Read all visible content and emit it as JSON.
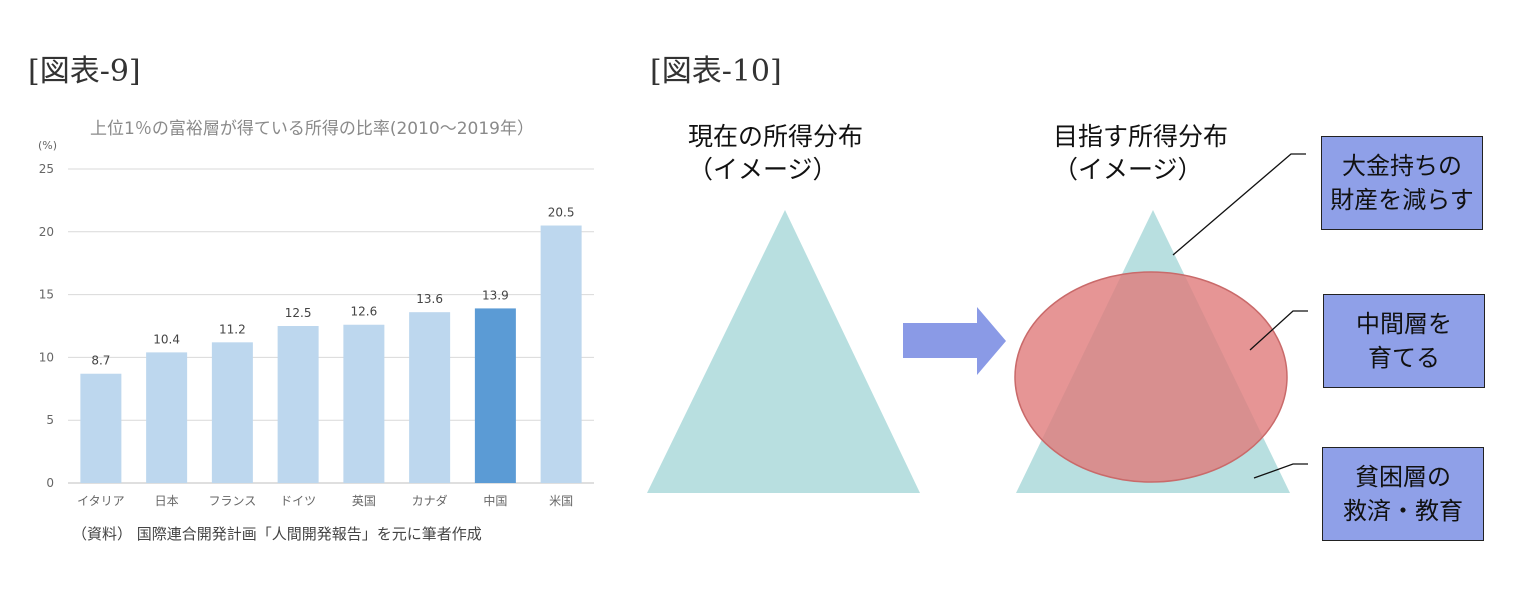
{
  "figure9": {
    "label": "[図表-9]",
    "source_note": "（資料） 国際連合開発計画「人間開発報告」を元に筆者作成"
  },
  "figure10": {
    "label": "[図表-10]",
    "current_title_line1": "現在の所得分布",
    "current_title_line2": "（イメージ）",
    "target_title_line1": "目指す所得分布",
    "target_title_line2": "（イメージ）",
    "box_rich_line1": "大金持ちの",
    "box_rich_line2": "財産を減らす",
    "box_middle_line1": "中間層を",
    "box_middle_line2": "育てる",
    "box_poor_line1": "貧困層の",
    "box_poor_line2": "救済・教育",
    "colors": {
      "triangle": "#b8dfe0",
      "ellipse": "#e07b7b",
      "arrow": "#8a9ae6",
      "box": "#8fa0e8"
    }
  },
  "chart_data": {
    "type": "bar",
    "title": "上位1％の富裕層が得ている所得の比率(2010～2019年）",
    "ylabel": "(%)",
    "ylim": [
      0,
      25
    ],
    "yticks": [
      0,
      5,
      10,
      15,
      20,
      25
    ],
    "grid": true,
    "categories": [
      "イタリア",
      "日本",
      "フランス",
      "ドイツ",
      "英国",
      "カナダ",
      "中国",
      "米国"
    ],
    "values": [
      8.7,
      10.4,
      11.2,
      12.5,
      12.6,
      13.6,
      13.9,
      20.5
    ],
    "value_labels": [
      "8.7",
      "10.4",
      "11.2",
      "12.5",
      "12.6",
      "13.6",
      "13.9",
      "20.5"
    ],
    "highlight_category": "中国",
    "colors": {
      "bar": "#bdd7ee",
      "highlight": "#5b9bd5",
      "grid": "#d9d9d9"
    }
  }
}
